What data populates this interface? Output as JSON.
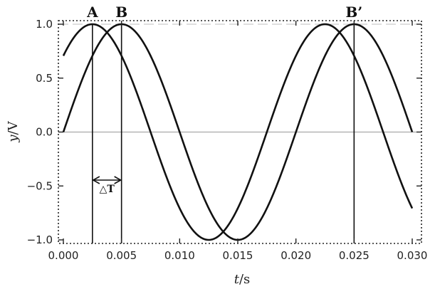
{
  "chart_data": {
    "type": "line",
    "xlabel_var": "t",
    "xlabel_unit": "/s",
    "ylabel_var": "y",
    "ylabel_unit": "/V",
    "xlim": [
      0,
      0.03
    ],
    "ylim": [
      -1,
      1
    ],
    "x_ticks": [
      "0.000",
      "0.005",
      "0.010",
      "0.015",
      "0.020",
      "0.025",
      "0.030"
    ],
    "y_ticks": [
      "1.0",
      "0.5",
      "0.0",
      "−0.5",
      "−1.0"
    ],
    "grid": false,
    "series": [
      {
        "amplitude": 1.0,
        "period": 0.02,
        "peak_t": [
          0.0025,
          0.0225
        ]
      },
      {
        "amplitude": 1.0,
        "period": 0.02,
        "peak_t": [
          0.005,
          0.025
        ]
      }
    ],
    "markers": [
      {
        "label": "A",
        "t": 0.0025
      },
      {
        "label": "B",
        "t": 0.005
      },
      {
        "label": "B’",
        "t": 0.025
      }
    ],
    "interval": {
      "label": "△T",
      "from": 0.0025,
      "to": 0.005
    }
  }
}
